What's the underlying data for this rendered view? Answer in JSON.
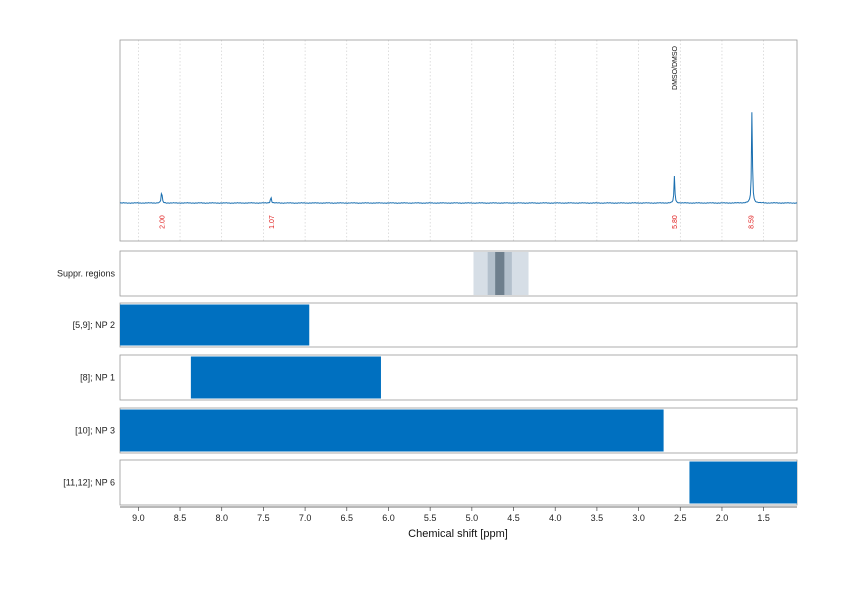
{
  "chart_data": {
    "type": "line",
    "xlabel": "Chemical shift [ppm]",
    "xlim": [
      9.22,
      1.1
    ],
    "x_ticks": [
      "9.0",
      "8.5",
      "8.0",
      "7.5",
      "7.0",
      "6.5",
      "6.0",
      "5.5",
      "5.0",
      "4.5",
      "4.0",
      "3.5",
      "3.0",
      "2.5",
      "2.0",
      "1.5"
    ],
    "grid": true,
    "colors": {
      "spectrum": "#1a6fb0",
      "bar": "#0070c0",
      "integral_text": "#e02020",
      "suppr_outer": "#d6dee6",
      "suppr_mid": "#b3c0cc",
      "suppr_core": "#6e7f8d"
    },
    "spectrum": {
      "peaks": [
        {
          "x": 8.72,
          "height": 0.13,
          "integral_label": "2.00",
          "box": [
            8.69,
            8.74
          ]
        },
        {
          "x": 7.41,
          "height": 0.07,
          "integral_label": "1.07",
          "box": [
            7.37,
            7.44
          ]
        },
        {
          "x": 2.57,
          "height": 0.27,
          "integral_label": "5.80",
          "box": [
            2.51,
            2.63
          ],
          "annotation": "DMSO/DMSO"
        },
        {
          "x": 1.64,
          "height": 0.95,
          "integral_label": "8.59",
          "box": [
            1.61,
            1.69
          ]
        }
      ]
    },
    "suppressed_regions": {
      "label": "Suppr. regions",
      "outer": [
        4.98,
        4.32
      ],
      "mid": [
        4.81,
        4.52
      ],
      "core": [
        4.72,
        4.61
      ]
    },
    "bars": [
      {
        "label": "[5,9]; NP 2",
        "range": [
          9.22,
          6.95
        ]
      },
      {
        "label": "[8]; NP 1",
        "range": [
          8.37,
          6.09
        ]
      },
      {
        "label": "[10]; NP 3",
        "range": [
          9.22,
          2.7
        ]
      },
      {
        "label": "[11,12]; NP 6",
        "range": [
          2.39,
          1.1
        ]
      }
    ]
  }
}
